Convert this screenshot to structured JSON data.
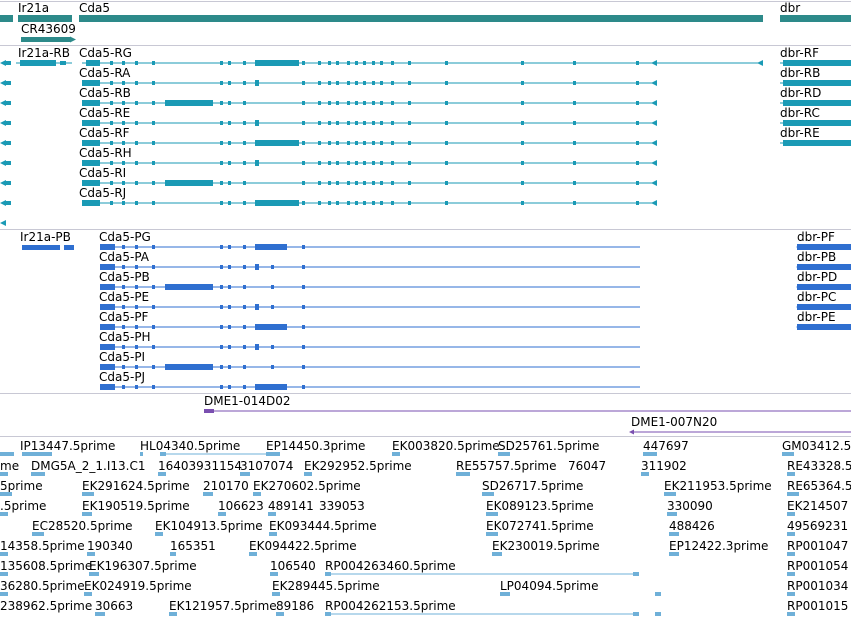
{
  "colors": {
    "gene": "#2d8a8a",
    "transcript": "#1a9ab5",
    "protein": "#2f6fd0",
    "clone": "#7a4fb0",
    "est": "#6fb0d8",
    "divider": "#c8c8d4"
  },
  "gene_track": {
    "genes": [
      "Ir21a",
      "Cda5",
      "dbr",
      "CR43609"
    ]
  },
  "transcript_track": {
    "left_label": "Ir21a-RB",
    "cda5": [
      "Cda5-RG",
      "Cda5-RA",
      "Cda5-RB",
      "Cda5-RE",
      "Cda5-RF",
      "Cda5-RH",
      "Cda5-RI",
      "Cda5-RJ"
    ],
    "dbr": [
      "dbr-RF",
      "dbr-RB",
      "dbr-RD",
      "dbr-RC",
      "dbr-RE"
    ]
  },
  "protein_track": {
    "left_label": "Ir21a-PB",
    "cda5": [
      "Cda5-PG",
      "Cda5-PA",
      "Cda5-PB",
      "Cda5-PE",
      "Cda5-PF",
      "Cda5-PH",
      "Cda5-PI",
      "Cda5-PJ"
    ],
    "dbr": [
      "dbr-PF",
      "dbr-PB",
      "dbr-PD",
      "dbr-PC",
      "dbr-PE"
    ]
  },
  "clone_track": {
    "clones": [
      "DME1-014D02",
      "DME1-007N20"
    ]
  },
  "est_track": {
    "labels": [
      "IP13447.5prime",
      "HL04340.5prime",
      "EP14450.3prime",
      "EK003820.5prime",
      "SD25761.5prime",
      "447697",
      "GM03412.5",
      "DMG5A_2_1.I13.C1",
      "16403931154",
      "3107074",
      "EK292952.5prime",
      "RE55757.5prime",
      "76047",
      "311902",
      "RE43328.5",
      "EK291624.5prime",
      "210170",
      "EK270602.5prime",
      "SD26717.5prime",
      "EK211953.5prime",
      "RE65364.5",
      "EK190519.5prime",
      "106623",
      "489141",
      "339053",
      "EK089123.5prime",
      "330090",
      "EK214507",
      "EC28520.5prime",
      "EK104913.5prime",
      "EK093444.5prime",
      "EK072741.5prime",
      "488426",
      "49569231",
      "190340",
      "165351",
      "EK094422.5prime",
      "EK230019.5prime",
      "EP12422.3prime",
      "RP001047",
      "EK196307.5prime",
      "106540",
      "RP004263460.5prime",
      "RP001054",
      "EK024919.5prime",
      "EK289445.5prime",
      "LP04094.5prime",
      "RP001034",
      "30663",
      "EK121957.5prime",
      "89186",
      "RP004262153.5prime",
      "RP001015",
      "me",
      ".5prime",
      "5prime",
      "14358.5prime",
      "135608.5prime",
      "36280.5prime",
      "238962.5prime"
    ]
  }
}
